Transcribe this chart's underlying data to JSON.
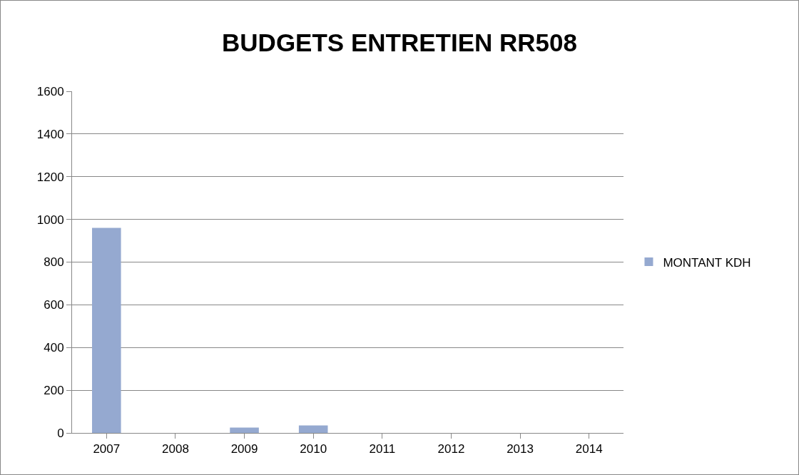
{
  "chart_data": {
    "type": "bar",
    "title": "BUDGETS ENTRETIEN RR508",
    "categories": [
      "2007",
      "2008",
      "2009",
      "2010",
      "2011",
      "2012",
      "2013",
      "2014"
    ],
    "series": [
      {
        "name": "MONTANT KDH",
        "color": "#95a9d0",
        "values": [
          960,
          0,
          25,
          35,
          0,
          0,
          0,
          0
        ]
      }
    ],
    "ylim": [
      0,
      1600
    ],
    "yticks": [
      0,
      200,
      400,
      600,
      800,
      1000,
      1200,
      1400,
      1600
    ],
    "grid": "y",
    "legend": "right"
  }
}
